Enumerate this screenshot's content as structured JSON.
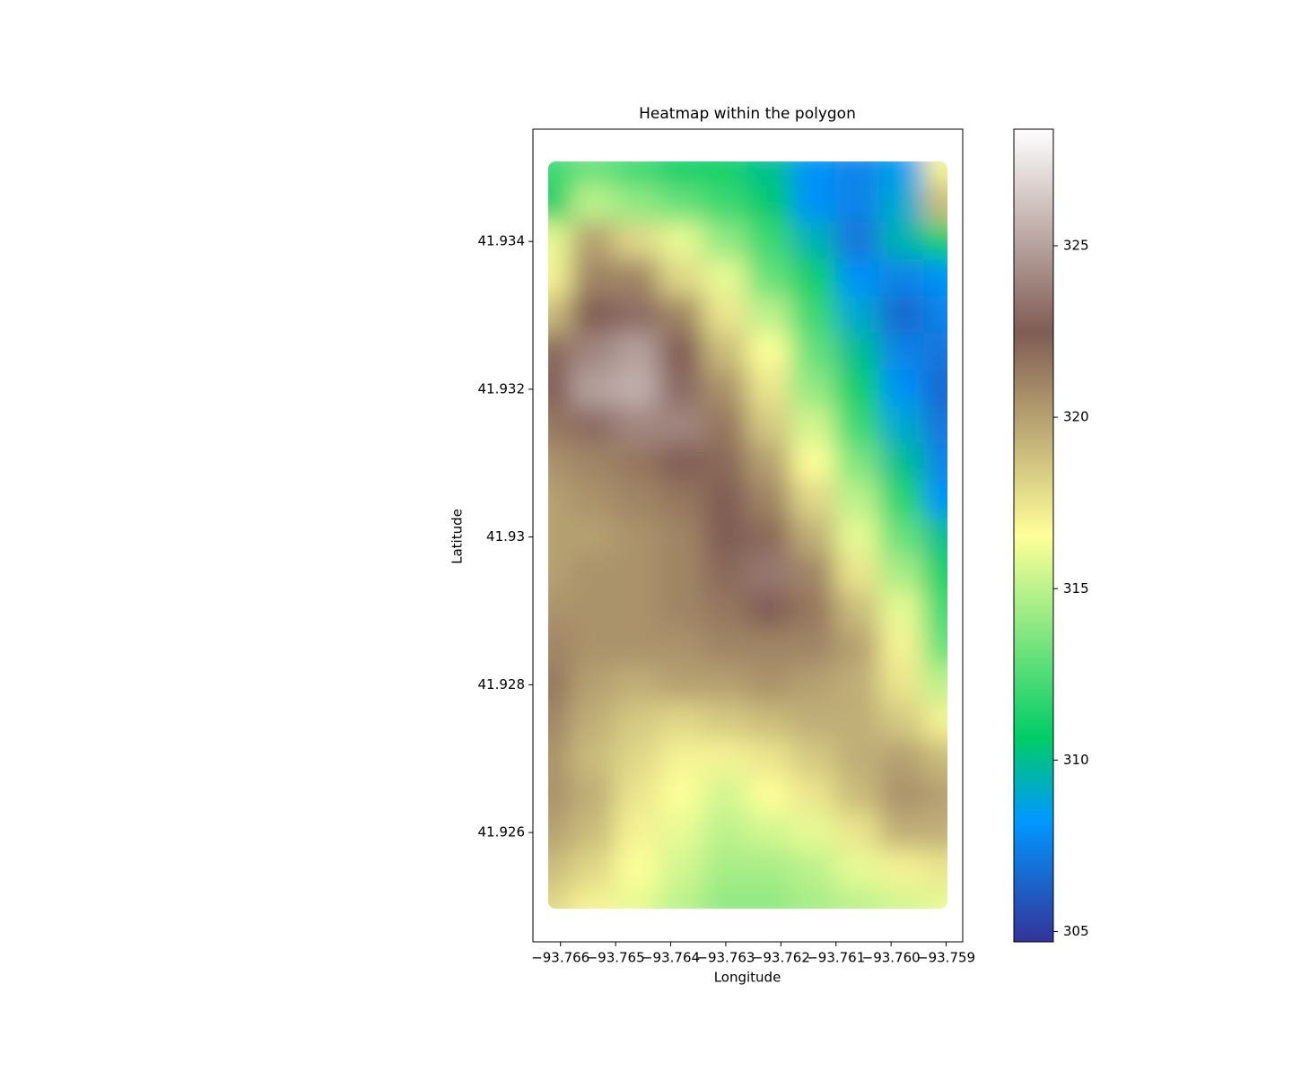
{
  "chart_data": {
    "type": "heatmap",
    "title": "Heatmap within the polygon",
    "x_label": "Longitude",
    "y_label": "Latitude",
    "colormap": "terrain",
    "x": [
      -93.7662,
      -93.7654,
      -93.7646,
      -93.7638,
      -93.763,
      -93.7622,
      -93.7614,
      -93.7606,
      -93.7598,
      -93.759
    ],
    "y": [
      41.935,
      41.9345,
      41.934,
      41.9335,
      41.933,
      41.9325,
      41.932,
      41.9315,
      41.931,
      41.9305,
      41.93,
      41.9295,
      41.929,
      41.9285,
      41.928,
      41.9275,
      41.927,
      41.9265,
      41.926,
      41.9255,
      41.925
    ],
    "z": [
      [
        312,
        313,
        312,
        311,
        311,
        310,
        308,
        307.5,
        308.5,
        317
      ],
      [
        311,
        315,
        314,
        313,
        312,
        310.5,
        308,
        307.5,
        309,
        319
      ],
      [
        316,
        320,
        318,
        316,
        314,
        312,
        309.5,
        307,
        309.5,
        311
      ],
      [
        317,
        321,
        321,
        318,
        316,
        313,
        311,
        308,
        307.5,
        308
      ],
      [
        319,
        322.5,
        323,
        321,
        317.5,
        315,
        312,
        309,
        306.5,
        307.5
      ],
      [
        322,
        324,
        325,
        322.5,
        319,
        316.5,
        313,
        310,
        307.5,
        307
      ],
      [
        322.5,
        325,
        325.5,
        323,
        320.5,
        317.5,
        314,
        311,
        308,
        306.5
      ],
      [
        321.5,
        323,
        324,
        324,
        321.5,
        318.5,
        315.5,
        312,
        309,
        307
      ],
      [
        320.5,
        321,
        321.5,
        322.5,
        322,
        320,
        316.5,
        313.5,
        310,
        307.5
      ],
      [
        320,
        320.5,
        321,
        321.5,
        322.5,
        321,
        318,
        315,
        311.5,
        308
      ],
      [
        320,
        320,
        320.5,
        321,
        322.5,
        322,
        319.5,
        316,
        313,
        310
      ],
      [
        320,
        320.5,
        320.5,
        321,
        322,
        323.5,
        321,
        317.5,
        314.5,
        311
      ],
      [
        320.5,
        320.5,
        320.5,
        321,
        321.5,
        322.5,
        321.5,
        319,
        316,
        312
      ],
      [
        321,
        320.5,
        320.5,
        320.5,
        321,
        321,
        321,
        320,
        317,
        313
      ],
      [
        321.5,
        320,
        319.5,
        320,
        320,
        320.5,
        320,
        319.5,
        317.5,
        315
      ],
      [
        321,
        319.5,
        318.5,
        318,
        318.5,
        319,
        319.5,
        319.5,
        318.5,
        317
      ],
      [
        320.5,
        319,
        318,
        317,
        317,
        317.5,
        318.5,
        319.5,
        320,
        319
      ],
      [
        320.5,
        319.5,
        317.5,
        316.5,
        315.5,
        316.5,
        317.5,
        319,
        320.5,
        320
      ],
      [
        320,
        319,
        317,
        316,
        315,
        315.5,
        316,
        317.5,
        319.5,
        319.5
      ],
      [
        319,
        318,
        316.5,
        315.5,
        314.5,
        314.5,
        315,
        316,
        317,
        317.5
      ],
      [
        318,
        317,
        316,
        315,
        314,
        314,
        314.5,
        315,
        315.5,
        316
      ]
    ],
    "xlim": [
      -93.7665,
      -93.7587
    ],
    "ylim": [
      41.92452,
      41.93552
    ],
    "xticks": [
      {
        "value": -93.766,
        "label": "−93.766"
      },
      {
        "value": -93.765,
        "label": "−93.765"
      },
      {
        "value": -93.764,
        "label": "−93.764"
      },
      {
        "value": -93.763,
        "label": "−93.763"
      },
      {
        "value": -93.762,
        "label": "−93.762"
      },
      {
        "value": -93.761,
        "label": "−93.761"
      },
      {
        "value": -93.76,
        "label": "−93.760"
      },
      {
        "value": -93.759,
        "label": "−93.759"
      }
    ],
    "yticks": [
      {
        "value": 41.926,
        "label": "41.926"
      },
      {
        "value": 41.928,
        "label": "41.928"
      },
      41.93,
      41.932,
      41.934
    ],
    "clim": [
      304.7,
      328.4
    ],
    "cticks": [
      305,
      310,
      315,
      320,
      325
    ]
  }
}
